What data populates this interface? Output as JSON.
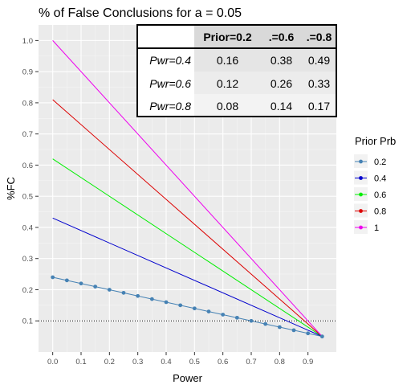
{
  "chart_data": {
    "type": "line",
    "title": "% of False Conclusions for a = 0.05",
    "xlabel": "Power",
    "ylabel": "%FC",
    "xlim": [
      -0.05,
      1.0
    ],
    "ylim": [
      0.0,
      1.05
    ],
    "x_ticks": [
      "0.0",
      "0.1",
      "0.2",
      "0.3",
      "0.4",
      "0.5",
      "0.6",
      "0.7",
      "0.8",
      "0.9"
    ],
    "y_ticks": [
      "0.1",
      "0.2",
      "0.3",
      "0.4",
      "0.5",
      "0.6",
      "0.7",
      "0.8",
      "0.9",
      "1.0"
    ],
    "grid": true,
    "reference_line": {
      "y": 0.1,
      "style": "dotted"
    },
    "legend": {
      "title": "Prior Prb",
      "placement": "right"
    },
    "series": [
      {
        "name": "0.2",
        "color": "#4682b4",
        "markers": true,
        "x": [
          0,
          0.05,
          0.1,
          0.15,
          0.2,
          0.25,
          0.3,
          0.35,
          0.4,
          0.45,
          0.5,
          0.55,
          0.6,
          0.65,
          0.7,
          0.75,
          0.8,
          0.85,
          0.9,
          0.95
        ],
        "y": [
          0.24,
          0.23,
          0.22,
          0.21,
          0.2,
          0.19,
          0.18,
          0.17,
          0.16,
          0.15,
          0.14,
          0.13,
          0.12,
          0.11,
          0.1,
          0.09,
          0.08,
          0.07,
          0.06,
          0.05
        ]
      },
      {
        "name": "0.4",
        "color": "#0000cd",
        "markers": false,
        "x": [
          0,
          0.95
        ],
        "y": [
          0.43,
          0.05
        ]
      },
      {
        "name": "0.6",
        "color": "#00ee00",
        "markers": false,
        "x": [
          0,
          0.95
        ],
        "y": [
          0.62,
          0.05
        ]
      },
      {
        "name": "0.8",
        "color": "#dd0000",
        "markers": false,
        "x": [
          0,
          0.95
        ],
        "y": [
          0.81,
          0.05
        ]
      },
      {
        "name": "1",
        "color": "#ee00ee",
        "markers": false,
        "x": [
          0,
          0.95
        ],
        "y": [
          1.0,
          0.05
        ]
      }
    ],
    "table": {
      "header": [
        "",
        "Prior=0.2",
        ".=0.6",
        ".=0.8"
      ],
      "rows": [
        {
          "label": "Pwr=0.4",
          "values": [
            "0.16",
            "0.38",
            "0.49"
          ]
        },
        {
          "label": "Pwr=0.6",
          "values": [
            "0.12",
            "0.26",
            "0.33"
          ]
        },
        {
          "label": "Pwr=0.8",
          "values": [
            "0.08",
            "0.14",
            "0.17"
          ]
        }
      ]
    }
  }
}
